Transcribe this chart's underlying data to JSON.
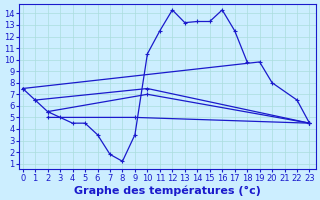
{
  "title": "Graphe des températures (°c)",
  "background_color": "#cceeff",
  "line_color": "#1a1acc",
  "x_ticks": [
    0,
    1,
    2,
    3,
    4,
    5,
    6,
    7,
    8,
    9,
    10,
    11,
    12,
    13,
    14,
    15,
    16,
    17,
    18,
    19,
    20,
    21,
    22,
    23
  ],
  "y_ticks": [
    1,
    2,
    3,
    4,
    5,
    6,
    7,
    8,
    9,
    10,
    11,
    12,
    13,
    14
  ],
  "ylim": [
    0.5,
    14.8
  ],
  "xlim": [
    -0.3,
    23.5
  ],
  "series": [
    {
      "x": [
        0,
        1,
        2,
        3,
        4,
        5,
        6,
        7,
        8,
        9,
        10,
        11,
        12,
        13,
        14,
        15,
        16,
        17,
        18
      ],
      "y": [
        7.5,
        6.5,
        5.5,
        5.0,
        4.5,
        4.5,
        3.5,
        1.8,
        1.2,
        3.5,
        10.5,
        12.5,
        14.3,
        13.2,
        13.3,
        13.3,
        14.3,
        12.5,
        9.8
      ]
    },
    {
      "x": [
        0,
        19,
        20,
        22,
        23
      ],
      "y": [
        7.5,
        9.8,
        8.0,
        6.5,
        4.5
      ]
    },
    {
      "x": [
        1,
        10,
        23
      ],
      "y": [
        6.5,
        7.5,
        4.5
      ]
    },
    {
      "x": [
        2,
        10,
        23
      ],
      "y": [
        5.5,
        7.0,
        4.5
      ]
    },
    {
      "x": [
        2,
        9,
        23
      ],
      "y": [
        5.0,
        5.0,
        4.5
      ]
    }
  ],
  "grid_color": "#aadddd",
  "font_size": 6,
  "marker_size": 2.5,
  "linewidth": 0.9
}
